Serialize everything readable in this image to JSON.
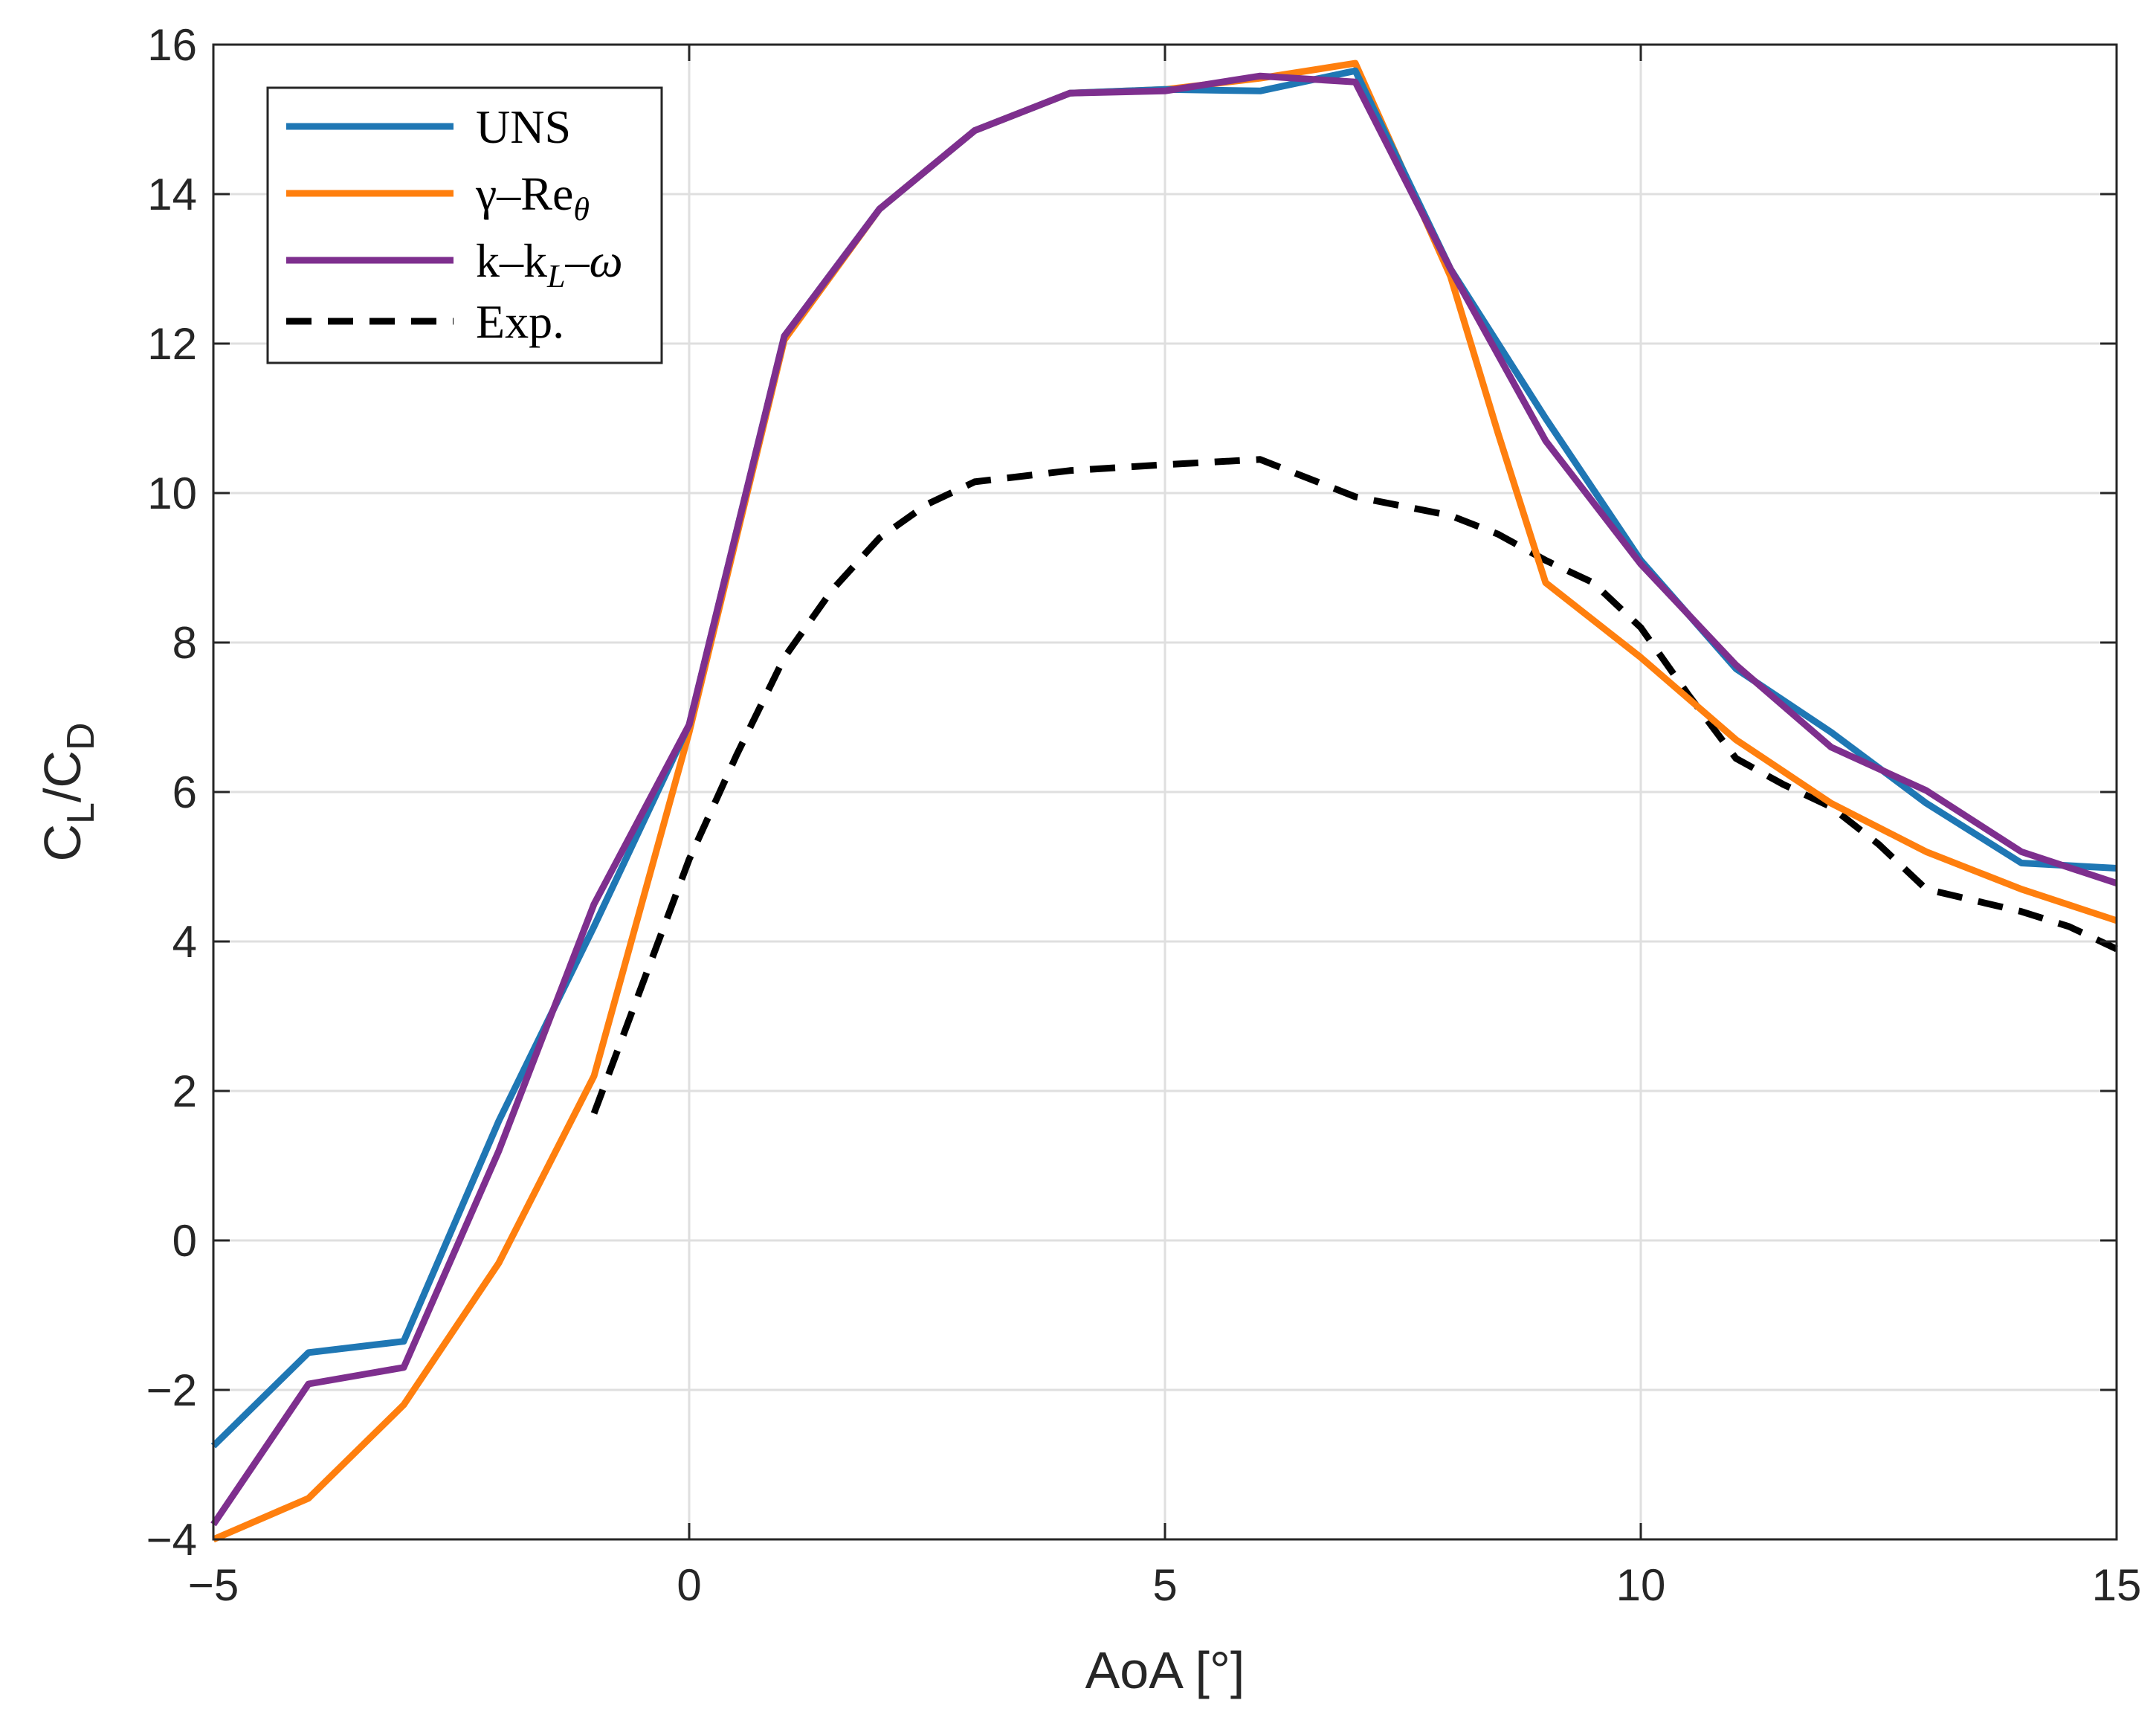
{
  "chart_data": {
    "type": "line",
    "title": "",
    "xlabel": "AoA [°]",
    "ylabel": {
      "base": "C",
      "sub1": "L",
      "slash": "/C",
      "sub2": "D"
    },
    "xlim": [
      -5,
      15
    ],
    "ylim": [
      -4,
      16
    ],
    "xticks": [
      -5,
      0,
      5,
      10,
      15
    ],
    "yticks": [
      -4,
      -2,
      0,
      2,
      4,
      6,
      8,
      10,
      12,
      14,
      16
    ],
    "xtick_labels": [
      "−5",
      "0",
      "5",
      "10",
      "15"
    ],
    "ytick_labels": [
      "−4",
      "−2",
      "0",
      "2",
      "4",
      "6",
      "8",
      "10",
      "12",
      "14",
      "16"
    ],
    "grid": true,
    "legend_position": "top-left",
    "series": [
      {
        "name": "UNS",
        "color": "#1f77b4",
        "dash": "solid",
        "x": [
          -5,
          -4,
          -3,
          -2,
          -1,
          0,
          1,
          2,
          3,
          4,
          5,
          6,
          7,
          8,
          9,
          10,
          11,
          12,
          13,
          14,
          15
        ],
        "y": [
          -2.75,
          -1.5,
          -1.35,
          1.6,
          4.2,
          6.9,
          12.1,
          13.8,
          14.85,
          15.35,
          15.4,
          15.38,
          15.65,
          13.0,
          11.0,
          9.1,
          7.65,
          6.8,
          5.85,
          5.05,
          4.98
        ]
      },
      {
        "name": "γ–Reθ",
        "label_main": "γ–Re",
        "label_sub": "θ",
        "color": "#ff7f0e",
        "dash": "solid",
        "x": [
          -5,
          -4,
          -3,
          -2,
          -1,
          0,
          1,
          2,
          3,
          4,
          5,
          6,
          7,
          8,
          8.5,
          9,
          10,
          11,
          12,
          13,
          14,
          15
        ],
        "y": [
          -4.0,
          -3.45,
          -2.2,
          -0.3,
          2.2,
          6.8,
          12.05,
          13.8,
          14.85,
          15.35,
          15.4,
          15.55,
          15.75,
          12.9,
          10.8,
          8.8,
          7.8,
          6.7,
          5.85,
          5.2,
          4.7,
          4.28
        ]
      },
      {
        "name": "k–kL–ω",
        "label_main": "k–k",
        "label_sub": "L",
        "label_tail": "–ω",
        "color": "#7e2f8e",
        "dash": "solid",
        "x": [
          -5,
          -4,
          -3,
          -2,
          -1,
          0,
          1,
          2,
          3,
          4,
          5,
          6,
          7,
          8,
          9,
          10,
          11,
          12,
          13,
          14,
          15
        ],
        "y": [
          -3.8,
          -1.92,
          -1.7,
          1.2,
          4.5,
          6.9,
          12.1,
          13.8,
          14.85,
          15.35,
          15.38,
          15.58,
          15.5,
          13.0,
          10.7,
          9.05,
          7.7,
          6.6,
          6.02,
          5.2,
          4.78
        ]
      },
      {
        "name": "Exp.",
        "color": "#000000",
        "dash": "dashed",
        "x": [
          -1,
          -0.5,
          0,
          0.5,
          1,
          1.5,
          2,
          2.5,
          3,
          4,
          5,
          6,
          7,
          8,
          8.5,
          9,
          9.5,
          10,
          10.5,
          11,
          11.5,
          12,
          12.5,
          13,
          14,
          14.5,
          15
        ],
        "y": [
          1.7,
          3.4,
          5.1,
          6.5,
          7.8,
          8.7,
          9.4,
          9.85,
          10.15,
          10.3,
          10.38,
          10.45,
          9.95,
          9.7,
          9.45,
          9.1,
          8.8,
          8.2,
          7.3,
          6.45,
          6.1,
          5.8,
          5.3,
          4.7,
          4.4,
          4.2,
          3.9
        ]
      }
    ]
  }
}
